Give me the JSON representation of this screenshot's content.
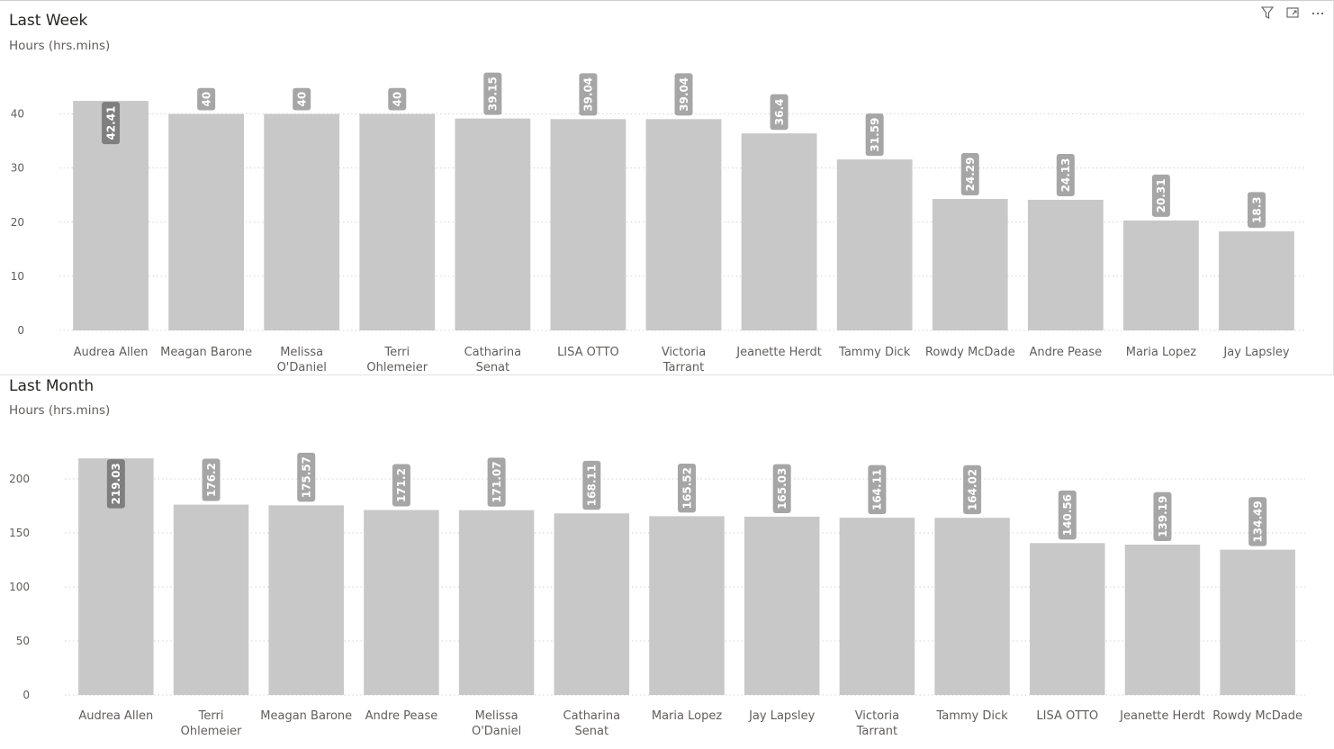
{
  "toolbar": {
    "filter_icon": "filter-icon",
    "focus_icon": "focus-mode-icon",
    "more_icon": "more-options-icon"
  },
  "chart_data": [
    {
      "type": "bar",
      "title": "Last Week",
      "subtitle": "Hours (hrs.mins)",
      "categories": [
        "Audrea Allen",
        "Meagan Barone",
        "Melissa O'Daniel",
        "Terri Ohlemeier",
        "Catharina Senat",
        "LISA OTTO",
        "Victoria Tarrant",
        "Jeanette Herdt",
        "Tammy Dick",
        "Rowdy McDade",
        "Andre Pease",
        "Maria Lopez",
        "Jay Lapsley"
      ],
      "values": [
        42.41,
        40,
        40,
        40,
        39.15,
        39.04,
        39.04,
        36.4,
        31.59,
        24.29,
        24.13,
        20.31,
        18.3
      ],
      "labels": [
        "42.41",
        "40",
        "40",
        "40",
        "39.15",
        "39.04",
        "39.04",
        "36.4",
        "31.59",
        "24.29",
        "24.13",
        "20.31",
        "18.3"
      ],
      "yticks": [
        0,
        10,
        20,
        30,
        40
      ],
      "ylim": [
        0,
        45
      ],
      "grid": true,
      "bar_color": "#c8c8c8",
      "label_bg": "#a6a6a6",
      "label_bg_inside": "#7f7f7f"
    },
    {
      "type": "bar",
      "title": "Last Month",
      "subtitle": "Hours (hrs.mins)",
      "categories": [
        "Audrea Allen",
        "Terri Ohlemeier",
        "Meagan Barone",
        "Andre Pease",
        "Melissa O'Daniel",
        "Catharina Senat",
        "Maria Lopez",
        "Jay Lapsley",
        "Victoria Tarrant",
        "Tammy Dick",
        "LISA OTTO",
        "Jeanette Herdt",
        "Rowdy McDade"
      ],
      "values": [
        219.03,
        176.2,
        175.57,
        171.2,
        171.07,
        168.11,
        165.52,
        165.03,
        164.11,
        164.02,
        140.56,
        139.19,
        134.49
      ],
      "labels": [
        "219.03",
        "176.2",
        "175.57",
        "171.2",
        "171.07",
        "168.11",
        "165.52",
        "165.03",
        "164.11",
        "164.02",
        "140.56",
        "139.19",
        "134.49"
      ],
      "yticks": [
        0,
        50,
        100,
        150,
        200
      ],
      "ylim": [
        0,
        225
      ],
      "grid": true,
      "bar_color": "#c8c8c8",
      "label_bg": "#a6a6a6",
      "label_bg_inside": "#7f7f7f"
    }
  ]
}
